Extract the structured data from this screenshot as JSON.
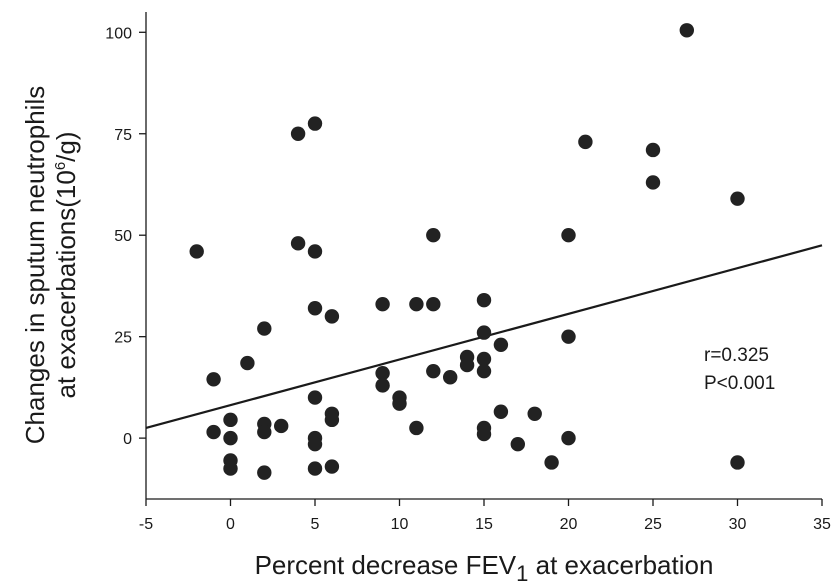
{
  "chart_data": {
    "type": "scatter",
    "x_axis": {
      "label_prefix": "Percent decrease FEV",
      "label_subscript": "1",
      "label_suffix": " at exacerbation",
      "range": [
        -5,
        35
      ],
      "ticks": [
        -5,
        0,
        5,
        10,
        15,
        20,
        25,
        30,
        35
      ]
    },
    "y_axis": {
      "label_line1": "Changes in sputum neutrophils",
      "label_line2_prefix": "at exacerbations(10",
      "label_line2_superscript": "6",
      "label_line2_suffix": "/g)",
      "range": [
        -15,
        105
      ],
      "ticks": [
        0,
        25,
        50,
        75,
        100
      ]
    },
    "grid": false,
    "points": [
      {
        "x": -2,
        "y": 46
      },
      {
        "x": -1,
        "y": 14.5
      },
      {
        "x": -1,
        "y": 1.5
      },
      {
        "x": 0,
        "y": 4.5
      },
      {
        "x": 0,
        "y": 0
      },
      {
        "x": 0,
        "y": -5.5
      },
      {
        "x": 0,
        "y": -7.5
      },
      {
        "x": 1,
        "y": 18.5
      },
      {
        "x": 2,
        "y": 27
      },
      {
        "x": 2,
        "y": 3.5
      },
      {
        "x": 2,
        "y": 1.5
      },
      {
        "x": 2,
        "y": -8.5
      },
      {
        "x": 3,
        "y": 3
      },
      {
        "x": 4,
        "y": 75
      },
      {
        "x": 4,
        "y": 48
      },
      {
        "x": 5,
        "y": 77.5
      },
      {
        "x": 5,
        "y": 46
      },
      {
        "x": 5,
        "y": 32
      },
      {
        "x": 5,
        "y": 10
      },
      {
        "x": 5,
        "y": 0
      },
      {
        "x": 5,
        "y": -1.5
      },
      {
        "x": 5,
        "y": -7.5
      },
      {
        "x": 6,
        "y": 30
      },
      {
        "x": 6,
        "y": 6
      },
      {
        "x": 6,
        "y": 4.5
      },
      {
        "x": 6,
        "y": -7
      },
      {
        "x": 9,
        "y": 33
      },
      {
        "x": 9,
        "y": 16
      },
      {
        "x": 9,
        "y": 13
      },
      {
        "x": 10,
        "y": 10
      },
      {
        "x": 10,
        "y": 8.5
      },
      {
        "x": 11,
        "y": 33
      },
      {
        "x": 11,
        "y": 2.5
      },
      {
        "x": 12,
        "y": 50
      },
      {
        "x": 12,
        "y": 33
      },
      {
        "x": 12,
        "y": 16.5
      },
      {
        "x": 13,
        "y": 15
      },
      {
        "x": 14,
        "y": 20
      },
      {
        "x": 14,
        "y": 18
      },
      {
        "x": 15,
        "y": 34
      },
      {
        "x": 15,
        "y": 26
      },
      {
        "x": 15,
        "y": 19.5
      },
      {
        "x": 15,
        "y": 16.5
      },
      {
        "x": 15,
        "y": 2.5
      },
      {
        "x": 15,
        "y": 1
      },
      {
        "x": 16,
        "y": 23
      },
      {
        "x": 16,
        "y": 6.5
      },
      {
        "x": 17,
        "y": -1.5
      },
      {
        "x": 18,
        "y": 6
      },
      {
        "x": 19,
        "y": -6
      },
      {
        "x": 20,
        "y": 50
      },
      {
        "x": 20,
        "y": 25
      },
      {
        "x": 20,
        "y": 0
      },
      {
        "x": 21,
        "y": 73
      },
      {
        "x": 25,
        "y": 71
      },
      {
        "x": 25,
        "y": 63
      },
      {
        "x": 27,
        "y": 100.5
      },
      {
        "x": 30,
        "y": 59
      },
      {
        "x": 30,
        "y": -6
      }
    ],
    "regression_line": {
      "x": [
        -5,
        35
      ],
      "y": [
        2.5,
        47.5
      ]
    },
    "annotations": [
      "r=0.325",
      "P<0.001"
    ]
  }
}
